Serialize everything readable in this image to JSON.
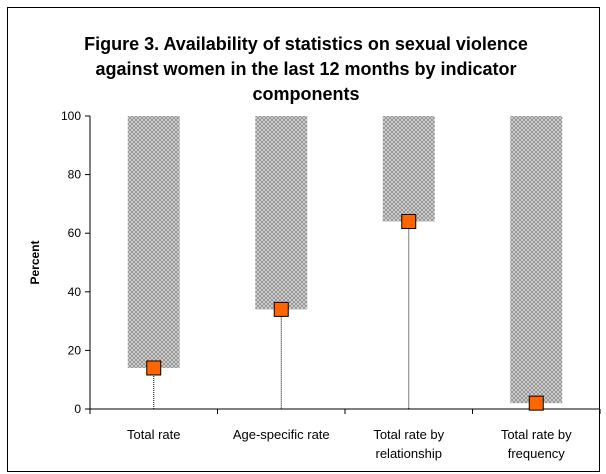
{
  "chart_data": {
    "type": "bar",
    "title_lines": [
      "Figure 3. Availability of statistics on sexual violence",
      "against women in the last 12 months by indicator",
      "components"
    ],
    "xlabel": "",
    "ylabel": "Percent",
    "ylim": [
      0,
      100
    ],
    "yticks": [
      0,
      20,
      40,
      60,
      80,
      100
    ],
    "grid": false,
    "categories": [
      [
        "Total rate"
      ],
      [
        "Age-specific rate"
      ],
      [
        "Total rate by",
        "relationship"
      ],
      [
        "Total rate by",
        "frequency"
      ]
    ],
    "series": [
      {
        "values": [
          14,
          34,
          64,
          2
        ],
        "color": "#FF6600",
        "marker": "square"
      }
    ],
    "bar_fill": "#BDBDBD",
    "bar_pattern": "crosshatch"
  }
}
